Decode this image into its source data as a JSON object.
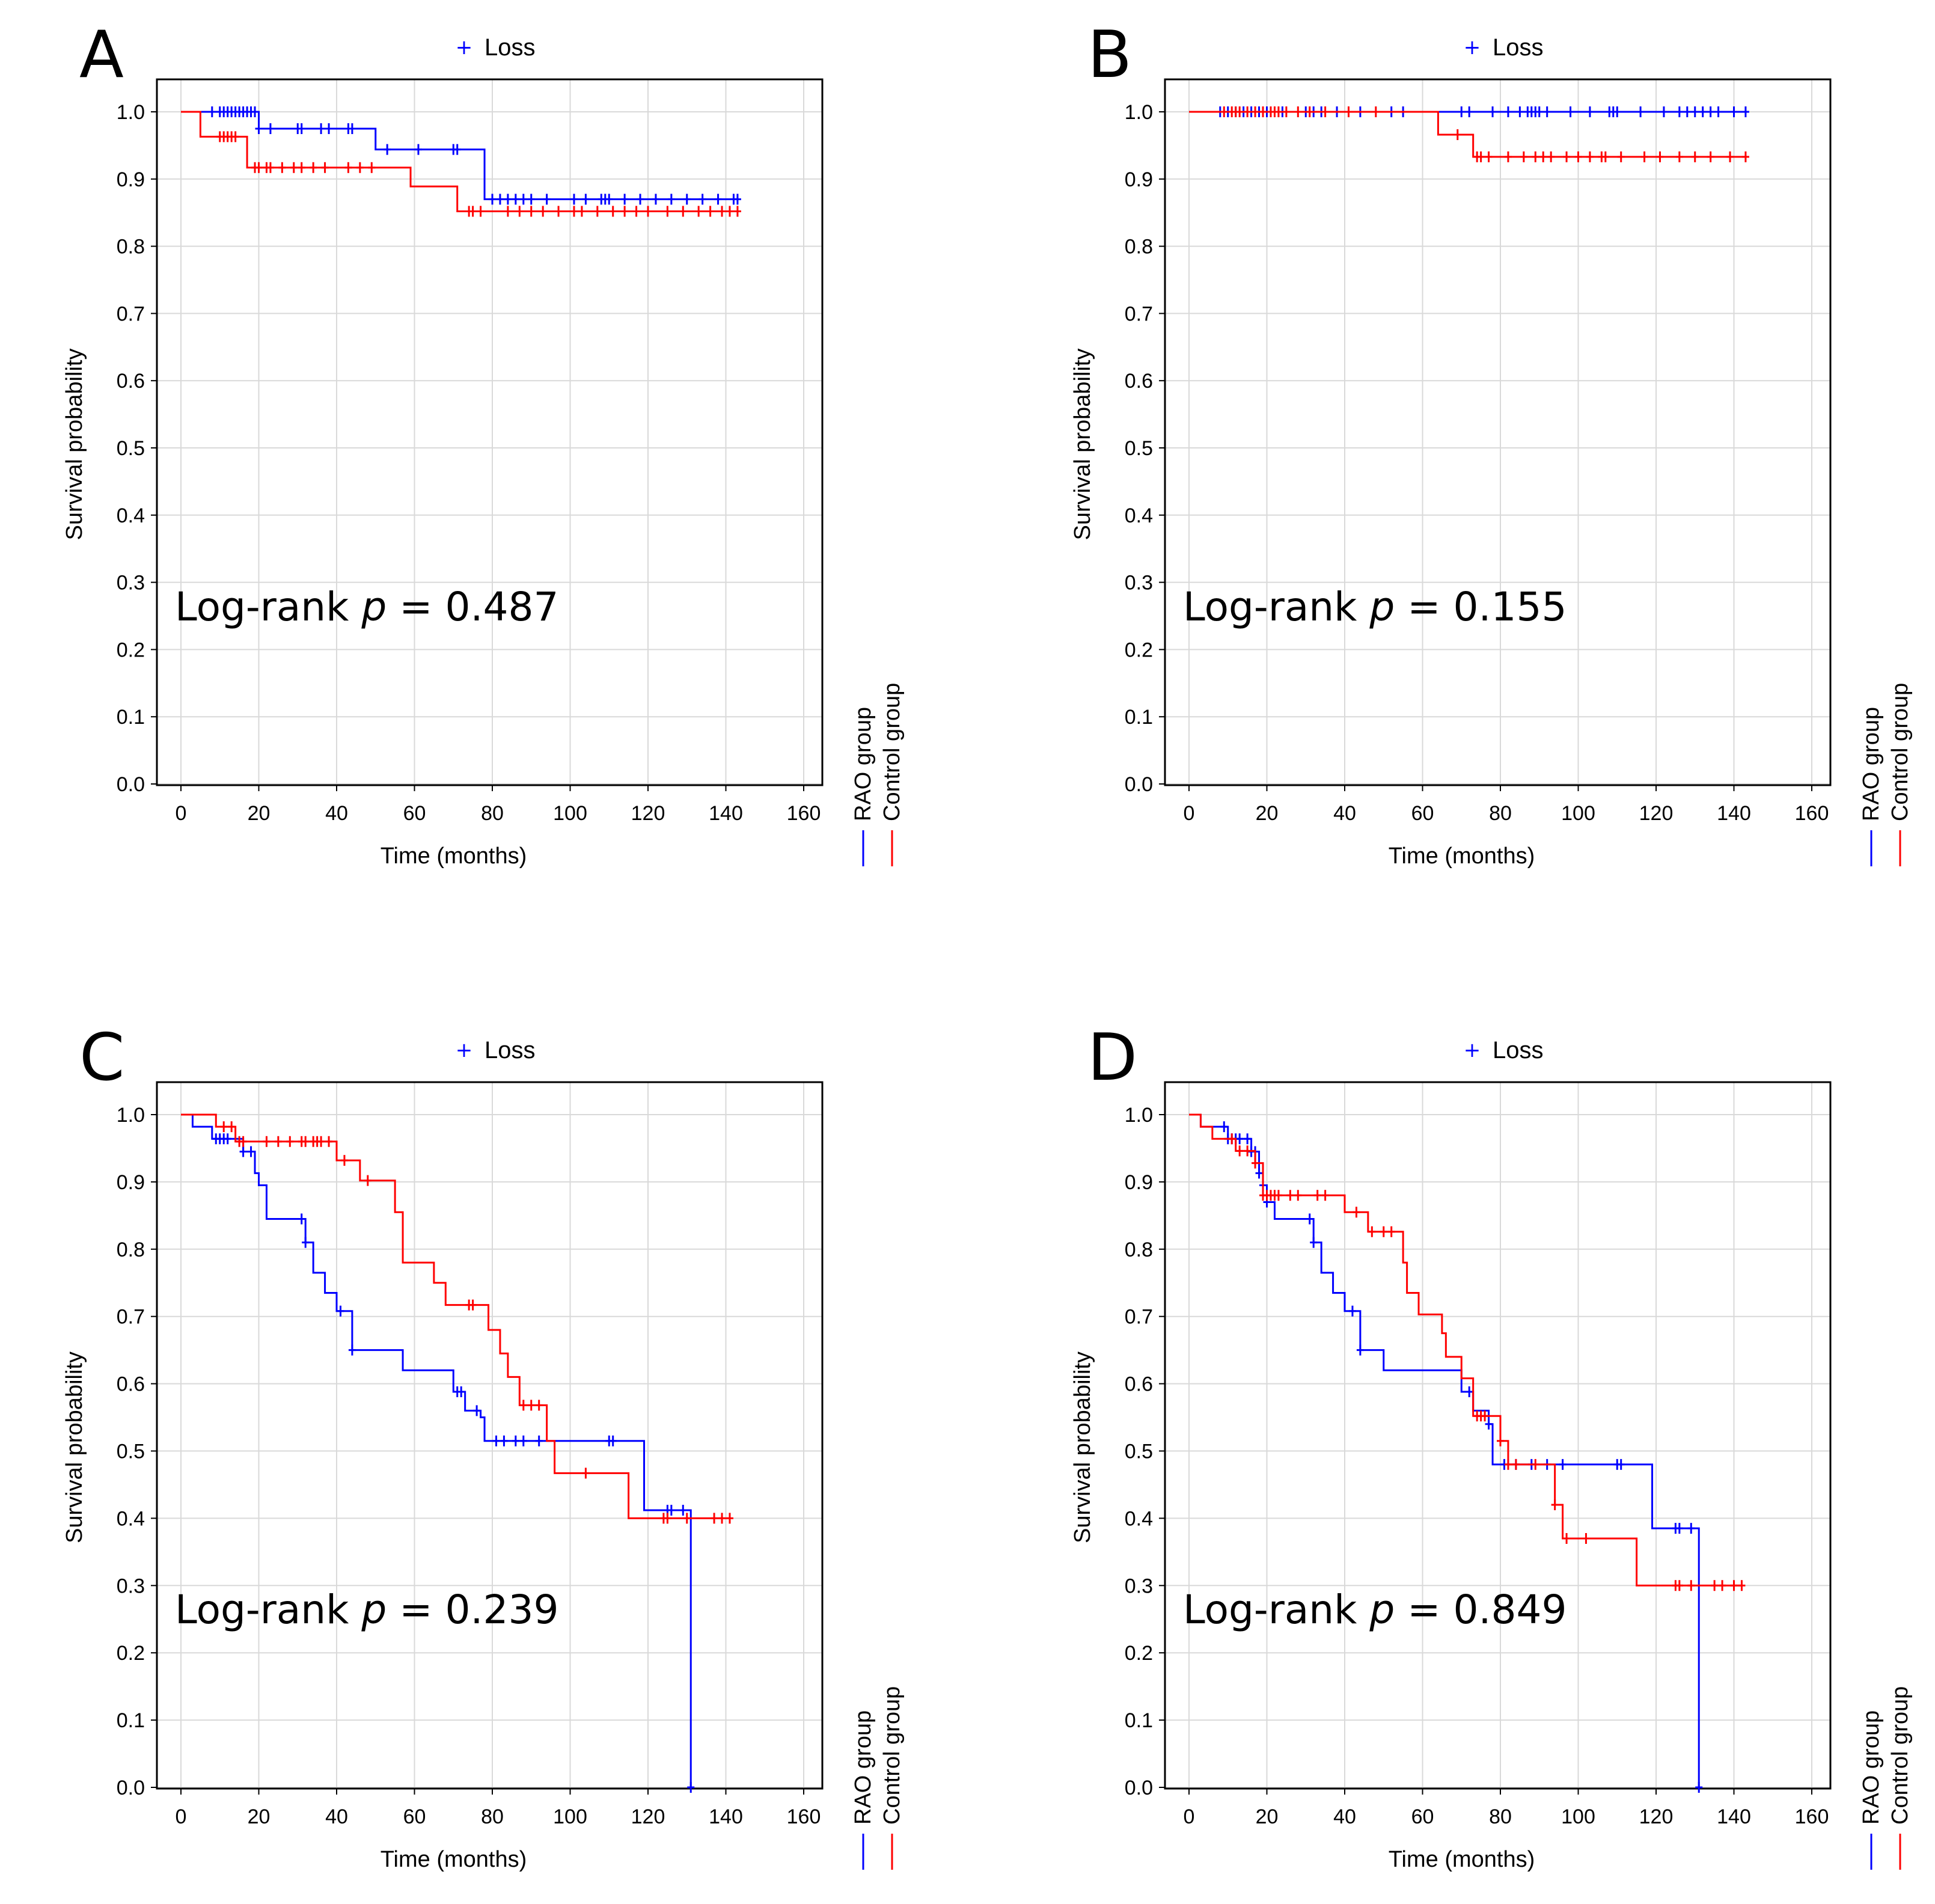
{
  "figure": {
    "colors": {
      "rao": "#0000ff",
      "control": "#ff0000",
      "grid": "#d9d9d9",
      "axis": "#000000"
    }
  },
  "chart_data": [
    {
      "id": "A",
      "type": "line",
      "panel_label": "A",
      "legend_title": "Loss",
      "annotation": {
        "prefix": "Log-rank ",
        "p_symbol": "p",
        "equals": " = ",
        "value": "0.487"
      },
      "xlabel": "Time (months)",
      "ylabel": "Survival probability",
      "xlim": [
        0,
        160
      ],
      "ylim": [
        0,
        1
      ],
      "xticks": [
        "0",
        "20",
        "40",
        "60",
        "80",
        "100",
        "120",
        "140",
        "160"
      ],
      "yticks": [
        "0.0",
        "0.1",
        "0.2",
        "0.3",
        "0.4",
        "0.5",
        "0.6",
        "0.7",
        "0.8",
        "0.9",
        "1.0"
      ],
      "group_labels": [
        "RAO group",
        "Control group"
      ],
      "series": [
        {
          "name": "RAO group",
          "color": "#0000ff",
          "steps": [
            [
              0,
              1.0
            ],
            [
              20,
              0.975
            ],
            [
              50,
              0.944
            ],
            [
              78,
              0.87
            ],
            [
              143,
              0.87
            ]
          ],
          "censored": [
            8,
            10,
            11,
            12,
            13,
            14,
            15,
            16,
            17,
            18,
            19,
            20,
            23,
            30,
            31,
            36,
            38,
            43,
            44,
            53,
            61,
            70,
            71,
            80,
            82,
            84,
            86,
            88,
            90,
            94,
            101,
            104,
            108,
            109,
            110,
            114,
            118,
            122,
            126,
            130,
            134,
            138,
            142,
            143
          ]
        },
        {
          "name": "Control group",
          "color": "#ff0000",
          "steps": [
            [
              0,
              1.0
            ],
            [
              5,
              0.963
            ],
            [
              17,
              0.917
            ],
            [
              59,
              0.889
            ],
            [
              71,
              0.852
            ],
            [
              143,
              0.852
            ]
          ],
          "censored": [
            10,
            11,
            12,
            13,
            14,
            19,
            20,
            22,
            23,
            26,
            29,
            31,
            34,
            37,
            43,
            46,
            49,
            74,
            75,
            77,
            84,
            87,
            90,
            93,
            97,
            101,
            103,
            107,
            111,
            114,
            117,
            120,
            125,
            129,
            133,
            136,
            139,
            141,
            143
          ]
        }
      ]
    },
    {
      "id": "B",
      "type": "line",
      "panel_label": "B",
      "legend_title": "Loss",
      "annotation": {
        "prefix": "Log-rank ",
        "p_symbol": "p",
        "equals": " = ",
        "value": "0.155"
      },
      "xlabel": "Time (months)",
      "ylabel": "Survival probability",
      "xlim": [
        0,
        160
      ],
      "ylim": [
        0,
        1
      ],
      "xticks": [
        "0",
        "20",
        "40",
        "60",
        "80",
        "100",
        "120",
        "140",
        "160"
      ],
      "yticks": [
        "0.0",
        "0.1",
        "0.2",
        "0.3",
        "0.4",
        "0.5",
        "0.6",
        "0.7",
        "0.8",
        "0.9",
        "1.0"
      ],
      "group_labels": [
        "RAO group",
        "Control group"
      ],
      "series": [
        {
          "name": "RAO group",
          "color": "#0000ff",
          "steps": [
            [
              0,
              1.0
            ],
            [
              143,
              1.0
            ]
          ],
          "censored": [
            8,
            10,
            12,
            14,
            16,
            18,
            20,
            24,
            30,
            32,
            34,
            38,
            44,
            52,
            55,
            70,
            72,
            78,
            82,
            85,
            87,
            88,
            89,
            90,
            92,
            98,
            103,
            108,
            109,
            110,
            116,
            122,
            126,
            128,
            130,
            132,
            134,
            136,
            140,
            143
          ]
        },
        {
          "name": "Control group",
          "color": "#ff0000",
          "steps": [
            [
              0,
              1.0
            ],
            [
              64,
              0.966
            ],
            [
              73,
              0.933
            ],
            [
              143,
              0.933
            ]
          ],
          "censored": [
            9,
            11,
            12,
            13,
            15,
            17,
            19,
            21,
            22,
            23,
            25,
            28,
            31,
            35,
            41,
            48,
            69,
            74,
            75,
            77,
            82,
            86,
            89,
            91,
            93,
            97,
            100,
            103,
            106,
            107,
            111,
            117,
            121,
            126,
            130,
            134,
            139,
            143
          ]
        }
      ]
    },
    {
      "id": "C",
      "type": "line",
      "panel_label": "C",
      "legend_title": "Loss",
      "annotation": {
        "prefix": "Log-rank ",
        "p_symbol": "p",
        "equals": " = ",
        "value": "0.239"
      },
      "xlabel": "Time (months)",
      "ylabel": "Survival probability",
      "xlim": [
        0,
        160
      ],
      "ylim": [
        0,
        1
      ],
      "xticks": [
        "0",
        "20",
        "40",
        "60",
        "80",
        "100",
        "120",
        "140",
        "160"
      ],
      "yticks": [
        "0.0",
        "0.1",
        "0.2",
        "0.3",
        "0.4",
        "0.5",
        "0.6",
        "0.7",
        "0.8",
        "0.9",
        "1.0"
      ],
      "group_labels": [
        "RAO group",
        "Control group"
      ],
      "series": [
        {
          "name": "RAO group",
          "color": "#0000ff",
          "steps": [
            [
              0,
              1.0
            ],
            [
              3,
              0.982
            ],
            [
              8,
              0.964
            ],
            [
              16,
              0.945
            ],
            [
              19,
              0.913
            ],
            [
              20,
              0.895
            ],
            [
              22,
              0.845
            ],
            [
              32,
              0.81
            ],
            [
              34,
              0.765
            ],
            [
              37,
              0.735
            ],
            [
              40,
              0.708
            ],
            [
              44,
              0.65
            ],
            [
              57,
              0.62
            ],
            [
              70,
              0.588
            ],
            [
              73,
              0.56
            ],
            [
              77,
              0.55
            ],
            [
              78,
              0.515
            ],
            [
              119,
              0.412
            ],
            [
              131,
              0.0
            ]
          ],
          "censored": [
            9,
            10,
            11,
            12,
            16,
            18,
            31,
            32,
            41,
            44,
            71,
            72,
            76,
            81,
            83,
            86,
            88,
            92,
            110,
            111,
            125,
            126,
            129,
            131
          ]
        },
        {
          "name": "Control group",
          "color": "#ff0000",
          "steps": [
            [
              0,
              1.0
            ],
            [
              9,
              0.982
            ],
            [
              14,
              0.96
            ],
            [
              40,
              0.932
            ],
            [
              46,
              0.902
            ],
            [
              55,
              0.855
            ],
            [
              57,
              0.78
            ],
            [
              65,
              0.75
            ],
            [
              68,
              0.717
            ],
            [
              79,
              0.68
            ],
            [
              82,
              0.645
            ],
            [
              84,
              0.61
            ],
            [
              87,
              0.568
            ],
            [
              94,
              0.515
            ],
            [
              96,
              0.467
            ],
            [
              115,
              0.4
            ],
            [
              141,
              0.4
            ]
          ],
          "censored": [
            11,
            13,
            15,
            16,
            22,
            25,
            28,
            31,
            32,
            34,
            35,
            36,
            38,
            42,
            48,
            74,
            75,
            88,
            90,
            92,
            104,
            124,
            125,
            130,
            137,
            139,
            141
          ]
        }
      ]
    },
    {
      "id": "D",
      "type": "line",
      "panel_label": "D",
      "legend_title": "Loss",
      "annotation": {
        "prefix": "Log-rank ",
        "p_symbol": "p",
        "equals": " = ",
        "value": "0.849"
      },
      "xlabel": "Time (months)",
      "ylabel": "Survival probability",
      "xlim": [
        0,
        160
      ],
      "ylim": [
        0,
        1
      ],
      "xticks": [
        "0",
        "20",
        "40",
        "60",
        "80",
        "100",
        "120",
        "140",
        "160"
      ],
      "yticks": [
        "0.0",
        "0.1",
        "0.2",
        "0.3",
        "0.4",
        "0.5",
        "0.6",
        "0.7",
        "0.8",
        "0.9",
        "1.0"
      ],
      "group_labels": [
        "RAO group",
        "Control group"
      ],
      "series": [
        {
          "name": "RAO group",
          "color": "#0000ff",
          "steps": [
            [
              0,
              1.0
            ],
            [
              3,
              0.982
            ],
            [
              10,
              0.964
            ],
            [
              16,
              0.945
            ],
            [
              18,
              0.913
            ],
            [
              19,
              0.895
            ],
            [
              20,
              0.87
            ],
            [
              22,
              0.845
            ],
            [
              32,
              0.81
            ],
            [
              34,
              0.765
            ],
            [
              37,
              0.735
            ],
            [
              40,
              0.708
            ],
            [
              44,
              0.65
            ],
            [
              50,
              0.62
            ],
            [
              70,
              0.588
            ],
            [
              73,
              0.56
            ],
            [
              77,
              0.54
            ],
            [
              78,
              0.48
            ],
            [
              119,
              0.385
            ],
            [
              131,
              0.0
            ]
          ],
          "censored": [
            9,
            10,
            11,
            12,
            13,
            15,
            16,
            17,
            18,
            19,
            20,
            31,
            32,
            42,
            44,
            72,
            77,
            81,
            84,
            88,
            92,
            96,
            110,
            111,
            125,
            126,
            129,
            131
          ]
        },
        {
          "name": "Control group",
          "color": "#ff0000",
          "steps": [
            [
              0,
              1.0
            ],
            [
              3,
              0.982
            ],
            [
              6,
              0.964
            ],
            [
              12,
              0.946
            ],
            [
              17,
              0.928
            ],
            [
              19,
              0.88
            ],
            [
              40,
              0.855
            ],
            [
              46,
              0.826
            ],
            [
              55,
              0.78
            ],
            [
              56,
              0.735
            ],
            [
              59,
              0.703
            ],
            [
              65,
              0.675
            ],
            [
              66,
              0.64
            ],
            [
              70,
              0.608
            ],
            [
              73,
              0.552
            ],
            [
              80,
              0.515
            ],
            [
              82,
              0.48
            ],
            [
              94,
              0.42
            ],
            [
              96,
              0.37
            ],
            [
              115,
              0.3
            ],
            [
              142,
              0.3
            ]
          ],
          "censored": [
            11,
            13,
            15,
            17,
            19,
            20,
            21,
            22,
            23,
            26,
            28,
            33,
            35,
            43,
            47,
            50,
            52,
            74,
            75,
            76,
            80,
            82,
            84,
            89,
            94,
            97,
            102,
            125,
            126,
            129,
            135,
            137,
            140,
            142
          ]
        }
      ]
    }
  ]
}
